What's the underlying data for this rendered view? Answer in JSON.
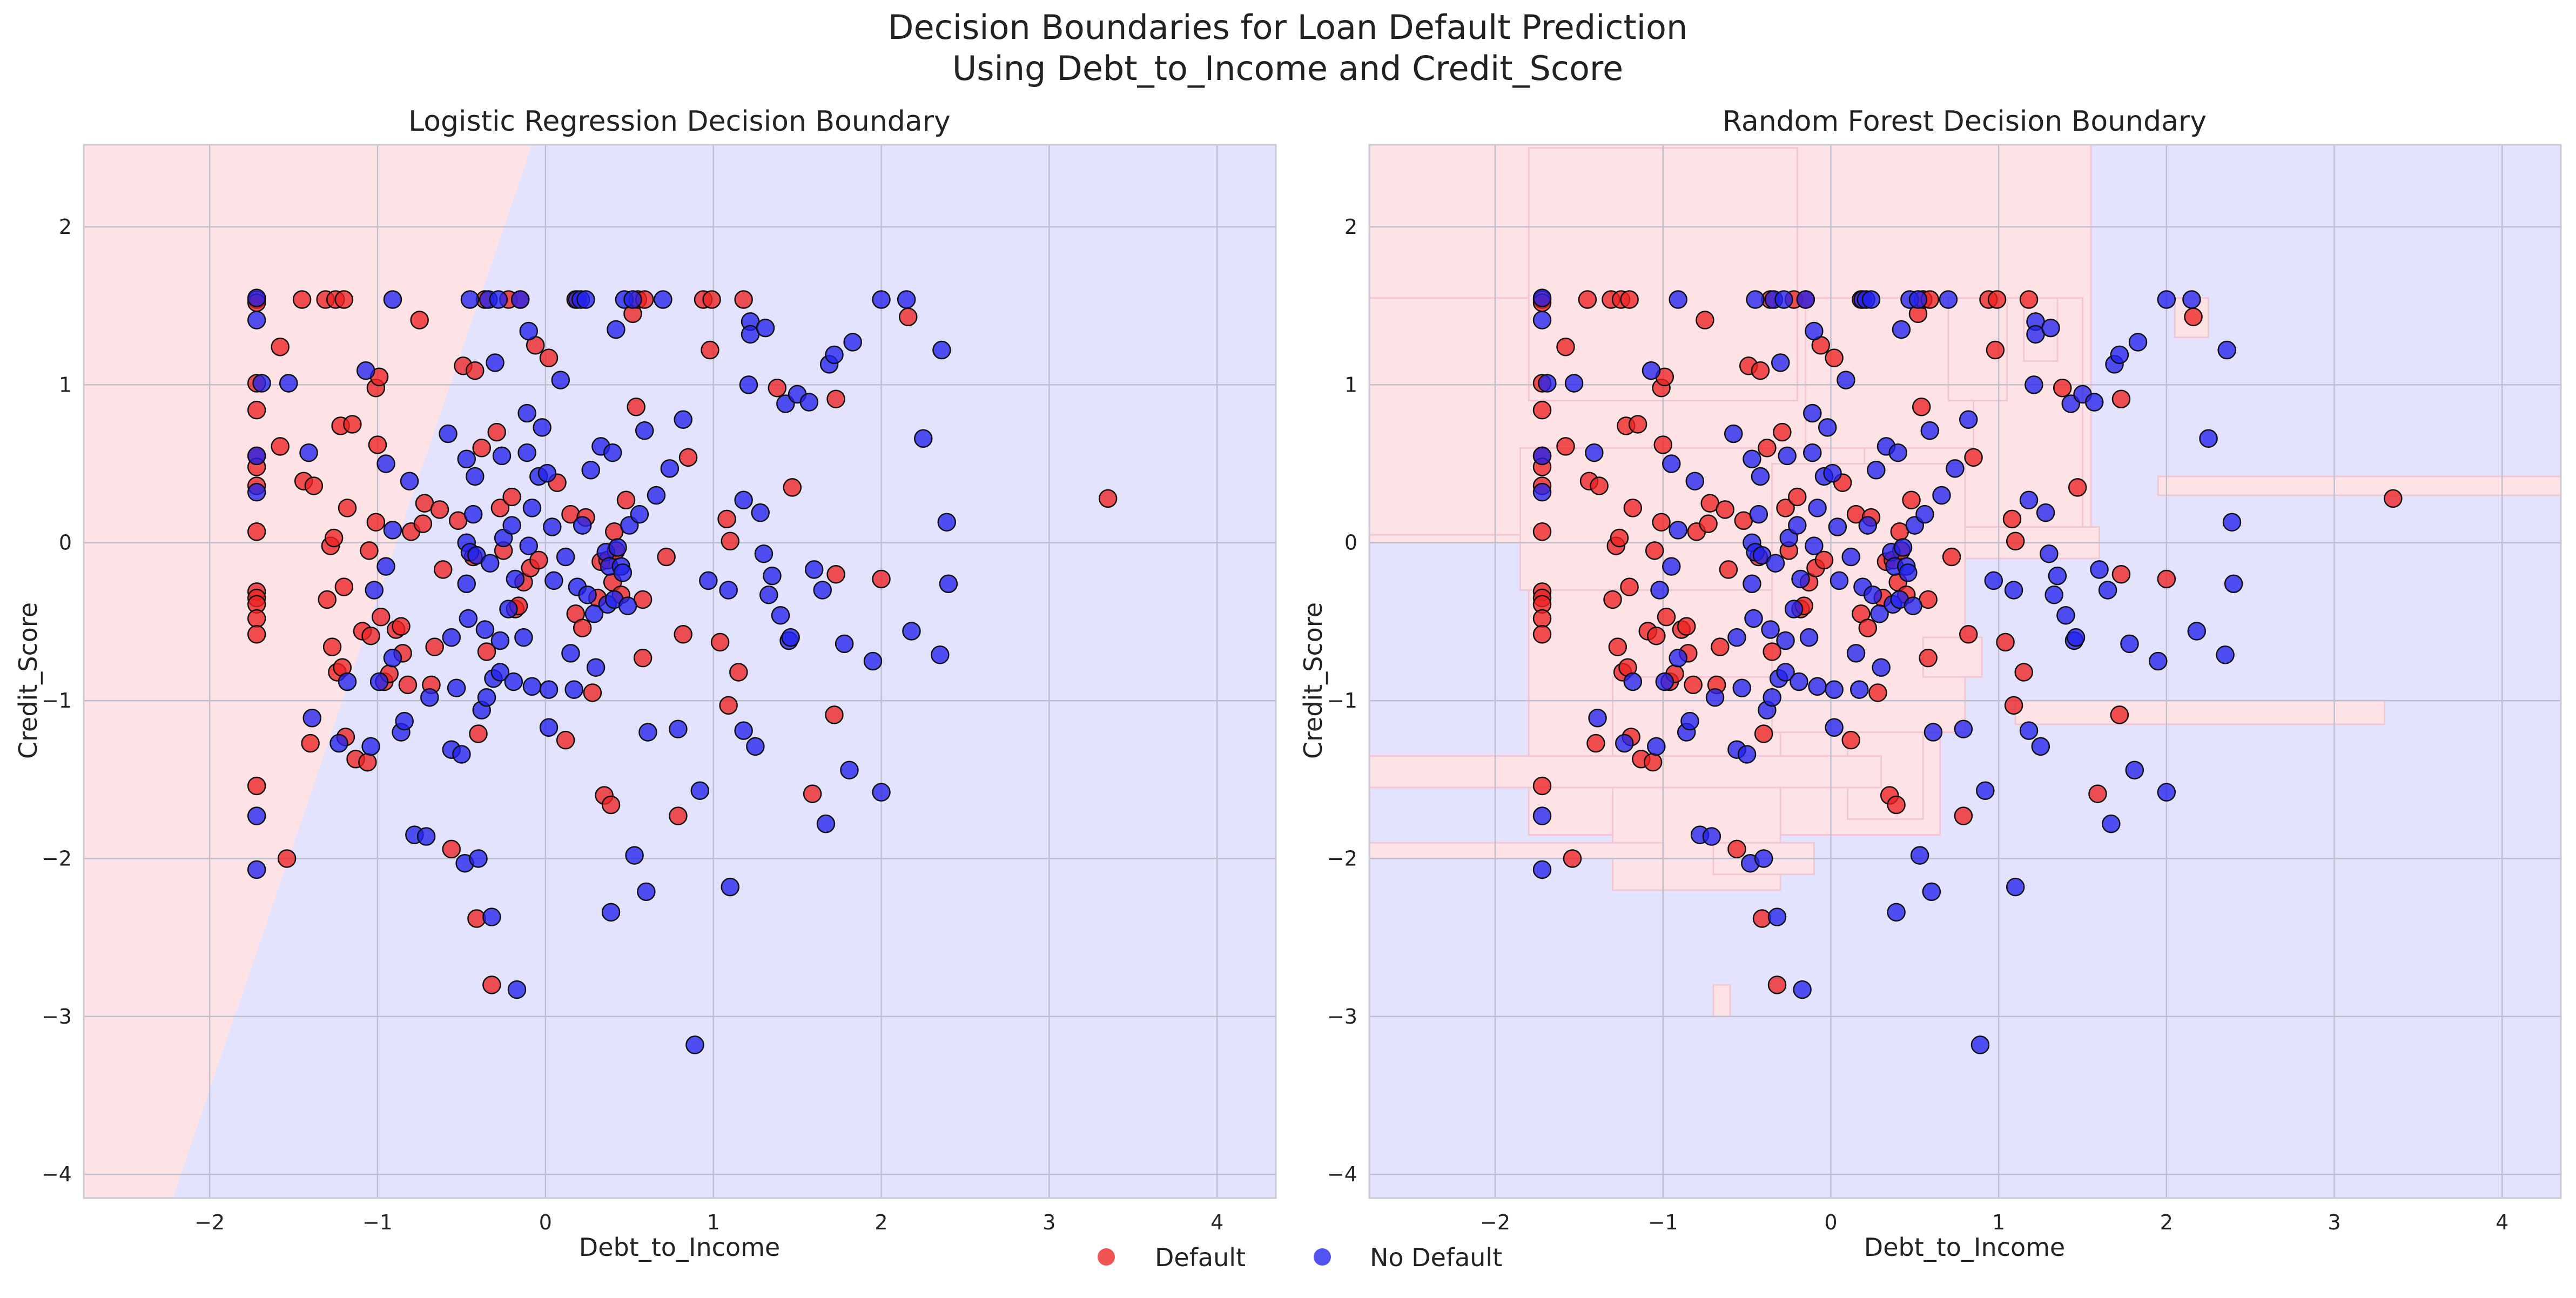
{
  "figure": {
    "title_line1": "Decision Boundaries for Loan Default Prediction",
    "title_line2": "Using Debt_to_Income and Credit_Score"
  },
  "legend": {
    "placement": "bottom-center",
    "entries": [
      {
        "label": "Default",
        "color": "#ee2222"
      },
      {
        "label": "No Default",
        "color": "#2222ee"
      }
    ]
  },
  "colors": {
    "default_region": "#fde3e6",
    "no_default_region": "#e3e3fd",
    "default_point": "#ee2222",
    "no_default_point": "#2222ee",
    "grid": "#bfbfcf",
    "frame": "#c8c8d6"
  },
  "chart_data": [
    {
      "type": "scatter",
      "title": "Logistic Regression Decision Boundary",
      "xlabel": "Debt_to_Income",
      "ylabel": "Credit_Score",
      "xlim": [
        -2.75,
        4.35
      ],
      "ylim": [
        -4.15,
        2.52
      ],
      "xticks": [
        -2,
        -1,
        0,
        1,
        2,
        3,
        4
      ],
      "yticks": [
        -4,
        -3,
        -2,
        -1,
        0,
        1,
        2
      ],
      "grid": true,
      "boundary": {
        "kind": "linear",
        "points": [
          [
            -2.22,
            -4.15
          ],
          [
            -0.08,
            2.52
          ]
        ],
        "left_class": "Default",
        "right_class": "No Default"
      }
    },
    {
      "type": "scatter",
      "title": "Random Forest Decision Boundary",
      "xlabel": "Debt_to_Income",
      "ylabel": "Credit_Score",
      "xlim": [
        -2.75,
        4.35
      ],
      "ylim": [
        -4.15,
        2.52
      ],
      "xticks": [
        -2,
        -1,
        0,
        1,
        2,
        3,
        4
      ],
      "yticks": [
        -4,
        -3,
        -2,
        -1,
        0,
        1,
        2
      ],
      "grid": true,
      "boundary": {
        "kind": "regions",
        "default_regions": [
          [
            -2.75,
            0.0,
            1.55,
            2.52
          ],
          [
            -2.75,
            0.05,
            1.5,
            1.55
          ],
          [
            -1.8,
            0.9,
            -0.2,
            2.5
          ],
          [
            -1.85,
            -0.3,
            0.2,
            0.6
          ],
          [
            -1.8,
            -1.85,
            0.65,
            -0.3
          ],
          [
            -1.3,
            -2.2,
            -0.3,
            -0.85
          ],
          [
            -0.15,
            0.6,
            0.85,
            1.55
          ],
          [
            -0.35,
            -1.2,
            0.8,
            0.5
          ],
          [
            0.1,
            -1.75,
            0.55,
            -1.2
          ],
          [
            0.7,
            0.9,
            1.05,
            1.55
          ],
          [
            1.15,
            1.15,
            1.35,
            1.55
          ],
          [
            2.05,
            1.3,
            2.25,
            1.55
          ],
          [
            1.95,
            0.3,
            4.35,
            0.42
          ],
          [
            0.8,
            -0.1,
            1.6,
            0.1
          ],
          [
            1.1,
            -1.15,
            3.3,
            -1.0
          ],
          [
            -2.75,
            -1.55,
            0.3,
            -1.35
          ],
          [
            -2.75,
            -2.0,
            -1.0,
            -1.9
          ],
          [
            -0.7,
            -2.1,
            -0.1,
            -1.9
          ],
          [
            -0.7,
            -3.0,
            -0.6,
            -2.8
          ],
          [
            0.55,
            -0.85,
            0.9,
            -0.6
          ]
        ]
      }
    }
  ],
  "points": {
    "default": [
      [
        -1.72,
        1.54
      ],
      [
        -1.72,
        1.52
      ],
      [
        -1.72,
        1.01
      ],
      [
        -1.72,
        0.84
      ],
      [
        -1.72,
        0.55
      ],
      [
        -1.72,
        0.48
      ],
      [
        -1.72,
        0.36
      ],
      [
        -1.72,
        0.07
      ],
      [
        -1.72,
        -0.31
      ],
      [
        -1.72,
        -0.35
      ],
      [
        -1.72,
        -0.39
      ],
      [
        -1.72,
        -0.48
      ],
      [
        -1.72,
        -0.58
      ],
      [
        -1.72,
        -1.54
      ],
      [
        -1.58,
        1.24
      ],
      [
        -1.58,
        0.61
      ],
      [
        -1.54,
        -2.0
      ],
      [
        -1.45,
        1.54
      ],
      [
        -1.44,
        0.39
      ],
      [
        -1.4,
        -1.27
      ],
      [
        -1.38,
        0.36
      ],
      [
        -1.31,
        1.54
      ],
      [
        -1.3,
        -0.36
      ],
      [
        -1.28,
        -0.02
      ],
      [
        -1.27,
        -0.66
      ],
      [
        -1.26,
        0.03
      ],
      [
        -1.25,
        1.54
      ],
      [
        -1.24,
        -0.82
      ],
      [
        -1.22,
        0.74
      ],
      [
        -1.21,
        -0.79
      ],
      [
        -1.2,
        1.54
      ],
      [
        -1.2,
        -0.28
      ],
      [
        -1.19,
        -1.23
      ],
      [
        -1.18,
        0.22
      ],
      [
        -1.15,
        0.75
      ],
      [
        -1.13,
        -1.37
      ],
      [
        -1.09,
        -0.56
      ],
      [
        -1.06,
        -1.39
      ],
      [
        -1.05,
        -0.05
      ],
      [
        -1.04,
        -0.59
      ],
      [
        -1.01,
        0.98
      ],
      [
        -1.01,
        0.13
      ],
      [
        -1.0,
        0.62
      ],
      [
        -0.99,
        1.05
      ],
      [
        -0.98,
        -0.47
      ],
      [
        -0.96,
        -0.88
      ],
      [
        -0.93,
        -0.83
      ],
      [
        -0.89,
        -0.55
      ],
      [
        -0.86,
        -0.53
      ],
      [
        -0.85,
        -0.7
      ],
      [
        -0.82,
        -0.9
      ],
      [
        -0.8,
        0.07
      ],
      [
        -0.75,
        1.41
      ],
      [
        -0.73,
        0.12
      ],
      [
        -0.72,
        0.25
      ],
      [
        -0.68,
        -0.9
      ],
      [
        -0.66,
        -0.66
      ],
      [
        -0.63,
        0.21
      ],
      [
        -0.61,
        -0.17
      ],
      [
        -0.56,
        -1.94
      ],
      [
        -0.52,
        0.14
      ],
      [
        -0.49,
        1.12
      ],
      [
        -0.43,
        -0.09
      ],
      [
        -0.42,
        1.09
      ],
      [
        -0.41,
        -2.38
      ],
      [
        -0.4,
        -1.21
      ],
      [
        -0.38,
        0.6
      ],
      [
        -0.36,
        1.54
      ],
      [
        -0.35,
        -0.69
      ],
      [
        -0.32,
        -2.8
      ],
      [
        -0.29,
        0.7
      ],
      [
        -0.27,
        0.22
      ],
      [
        -0.25,
        -0.05
      ],
      [
        -0.22,
        1.54
      ],
      [
        -0.2,
        0.29
      ],
      [
        -0.18,
        -0.42
      ],
      [
        -0.16,
        -0.4
      ],
      [
        -0.15,
        1.54
      ],
      [
        -0.13,
        -0.25
      ],
      [
        -0.09,
        -0.16
      ],
      [
        -0.06,
        1.25
      ],
      [
        -0.04,
        -0.11
      ],
      [
        0.02,
        1.17
      ],
      [
        0.07,
        0.38
      ],
      [
        0.12,
        -1.25
      ],
      [
        0.15,
        0.18
      ],
      [
        0.18,
        1.54
      ],
      [
        0.18,
        -0.45
      ],
      [
        0.22,
        -0.54
      ],
      [
        0.24,
        0.16
      ],
      [
        0.28,
        -0.95
      ],
      [
        0.31,
        -0.35
      ],
      [
        0.33,
        -0.12
      ],
      [
        0.35,
        -1.6
      ],
      [
        0.37,
        -0.11
      ],
      [
        0.39,
        -1.66
      ],
      [
        0.4,
        -0.25
      ],
      [
        0.41,
        0.07
      ],
      [
        0.42,
        -0.05
      ],
      [
        0.45,
        -0.33
      ],
      [
        0.48,
        0.27
      ],
      [
        0.52,
        1.45
      ],
      [
        0.54,
        0.86
      ],
      [
        0.55,
        1.54
      ],
      [
        0.58,
        -0.73
      ],
      [
        0.58,
        -0.36
      ],
      [
        0.59,
        1.54
      ],
      [
        0.72,
        -0.09
      ],
      [
        0.79,
        -1.73
      ],
      [
        0.82,
        -0.58
      ],
      [
        0.85,
        0.54
      ],
      [
        0.94,
        1.54
      ],
      [
        0.98,
        1.22
      ],
      [
        0.99,
        1.54
      ],
      [
        1.04,
        -0.63
      ],
      [
        1.08,
        0.15
      ],
      [
        1.09,
        -1.03
      ],
      [
        1.1,
        0.01
      ],
      [
        1.15,
        -0.82
      ],
      [
        1.18,
        1.54
      ],
      [
        1.38,
        0.98
      ],
      [
        1.47,
        0.35
      ],
      [
        1.59,
        -1.59
      ],
      [
        1.73,
        0.91
      ],
      [
        1.73,
        -0.2
      ],
      [
        1.72,
        -1.09
      ],
      [
        2.0,
        -0.23
      ],
      [
        2.16,
        1.43
      ],
      [
        3.35,
        0.28
      ]
    ],
    "no_default": [
      [
        -1.72,
        1.55
      ],
      [
        -1.72,
        1.41
      ],
      [
        -1.72,
        0.55
      ],
      [
        -1.72,
        0.32
      ],
      [
        -1.72,
        -1.73
      ],
      [
        -1.72,
        -2.07
      ],
      [
        -1.69,
        1.01
      ],
      [
        -1.53,
        1.01
      ],
      [
        -1.41,
        0.57
      ],
      [
        -1.39,
        -1.11
      ],
      [
        -1.23,
        -1.27
      ],
      [
        -1.18,
        -0.88
      ],
      [
        -1.07,
        1.09
      ],
      [
        -1.04,
        -1.29
      ],
      [
        -1.02,
        -0.3
      ],
      [
        -0.99,
        -0.88
      ],
      [
        -0.95,
        0.5
      ],
      [
        -0.95,
        -0.15
      ],
      [
        -0.91,
        1.54
      ],
      [
        -0.91,
        0.08
      ],
      [
        -0.91,
        -0.73
      ],
      [
        -0.86,
        -1.2
      ],
      [
        -0.84,
        -1.13
      ],
      [
        -0.81,
        0.39
      ],
      [
        -0.78,
        -1.85
      ],
      [
        -0.71,
        -1.86
      ],
      [
        -0.69,
        -0.98
      ],
      [
        -0.58,
        0.69
      ],
      [
        -0.56,
        -0.6
      ],
      [
        -0.56,
        -1.31
      ],
      [
        -0.53,
        -0.92
      ],
      [
        -0.5,
        -1.34
      ],
      [
        -0.48,
        -2.03
      ],
      [
        -0.47,
        0.53
      ],
      [
        -0.47,
        0.0
      ],
      [
        -0.47,
        -0.26
      ],
      [
        -0.46,
        -0.48
      ],
      [
        -0.45,
        1.54
      ],
      [
        -0.45,
        -0.06
      ],
      [
        -0.43,
        0.18
      ],
      [
        -0.42,
        0.42
      ],
      [
        -0.41,
        -0.08
      ],
      [
        -0.4,
        -2.0
      ],
      [
        -0.38,
        -1.06
      ],
      [
        -0.36,
        -0.55
      ],
      [
        -0.35,
        -0.98
      ],
      [
        -0.34,
        1.54
      ],
      [
        -0.33,
        -0.13
      ],
      [
        -0.32,
        -2.37
      ],
      [
        -0.31,
        -0.86
      ],
      [
        -0.3,
        1.14
      ],
      [
        -0.28,
        1.54
      ],
      [
        -0.27,
        -0.82
      ],
      [
        -0.27,
        -0.62
      ],
      [
        -0.26,
        0.55
      ],
      [
        -0.25,
        0.03
      ],
      [
        -0.22,
        -0.42
      ],
      [
        -0.2,
        0.11
      ],
      [
        -0.19,
        -0.88
      ],
      [
        -0.18,
        -0.23
      ],
      [
        -0.17,
        -2.83
      ],
      [
        -0.15,
        1.54
      ],
      [
        -0.13,
        -0.6
      ],
      [
        -0.11,
        0.82
      ],
      [
        -0.11,
        0.57
      ],
      [
        -0.1,
        -0.02
      ],
      [
        -0.1,
        1.34
      ],
      [
        -0.08,
        -0.91
      ],
      [
        -0.08,
        0.22
      ],
      [
        -0.04,
        0.42
      ],
      [
        -0.02,
        0.73
      ],
      [
        0.01,
        0.44
      ],
      [
        0.02,
        -0.93
      ],
      [
        0.02,
        -1.17
      ],
      [
        0.04,
        0.1
      ],
      [
        0.05,
        -0.24
      ],
      [
        0.09,
        1.03
      ],
      [
        0.12,
        -0.09
      ],
      [
        0.15,
        -0.7
      ],
      [
        0.17,
        -0.93
      ],
      [
        0.19,
        1.54
      ],
      [
        0.19,
        -0.28
      ],
      [
        0.21,
        1.54
      ],
      [
        0.22,
        0.11
      ],
      [
        0.24,
        1.54
      ],
      [
        0.25,
        -0.33
      ],
      [
        0.27,
        0.46
      ],
      [
        0.29,
        -0.45
      ],
      [
        0.3,
        -0.79
      ],
      [
        0.33,
        0.61
      ],
      [
        0.36,
        -0.06
      ],
      [
        0.37,
        -0.39
      ],
      [
        0.38,
        -0.15
      ],
      [
        0.39,
        -2.34
      ],
      [
        0.4,
        0.57
      ],
      [
        0.41,
        -0.36
      ],
      [
        0.42,
        1.35
      ],
      [
        0.43,
        -0.03
      ],
      [
        0.45,
        -0.15
      ],
      [
        0.46,
        -0.19
      ],
      [
        0.47,
        1.54
      ],
      [
        0.49,
        -0.4
      ],
      [
        0.5,
        0.11
      ],
      [
        0.52,
        1.54
      ],
      [
        0.53,
        -1.98
      ],
      [
        0.56,
        0.18
      ],
      [
        0.59,
        0.71
      ],
      [
        0.6,
        -2.21
      ],
      [
        0.61,
        -1.2
      ],
      [
        0.66,
        0.3
      ],
      [
        0.7,
        1.54
      ],
      [
        0.74,
        0.47
      ],
      [
        0.79,
        -1.18
      ],
      [
        0.82,
        0.78
      ],
      [
        0.89,
        -3.18
      ],
      [
        0.92,
        -1.57
      ],
      [
        0.97,
        -0.24
      ],
      [
        1.09,
        -0.3
      ],
      [
        1.1,
        -2.18
      ],
      [
        1.18,
        0.27
      ],
      [
        1.18,
        -1.19
      ],
      [
        1.21,
        1.0
      ],
      [
        1.22,
        1.4
      ],
      [
        1.22,
        1.32
      ],
      [
        1.25,
        -1.29
      ],
      [
        1.28,
        0.19
      ],
      [
        1.3,
        -0.07
      ],
      [
        1.31,
        1.36
      ],
      [
        1.33,
        -0.33
      ],
      [
        1.35,
        -0.21
      ],
      [
        1.4,
        -0.46
      ],
      [
        1.43,
        0.88
      ],
      [
        1.45,
        -0.62
      ],
      [
        1.46,
        -0.6
      ],
      [
        1.5,
        0.94
      ],
      [
        1.57,
        0.89
      ],
      [
        1.6,
        -0.17
      ],
      [
        1.65,
        -0.3
      ],
      [
        1.67,
        -1.78
      ],
      [
        1.69,
        1.13
      ],
      [
        1.72,
        1.19
      ],
      [
        1.78,
        -0.64
      ],
      [
        1.81,
        -1.44
      ],
      [
        1.83,
        1.27
      ],
      [
        1.95,
        -0.75
      ],
      [
        2.0,
        1.54
      ],
      [
        2.0,
        -1.58
      ],
      [
        2.15,
        1.54
      ],
      [
        2.18,
        -0.56
      ],
      [
        2.25,
        0.66
      ],
      [
        2.35,
        -0.71
      ],
      [
        2.36,
        1.22
      ],
      [
        2.39,
        0.13
      ],
      [
        2.4,
        -0.26
      ]
    ]
  }
}
